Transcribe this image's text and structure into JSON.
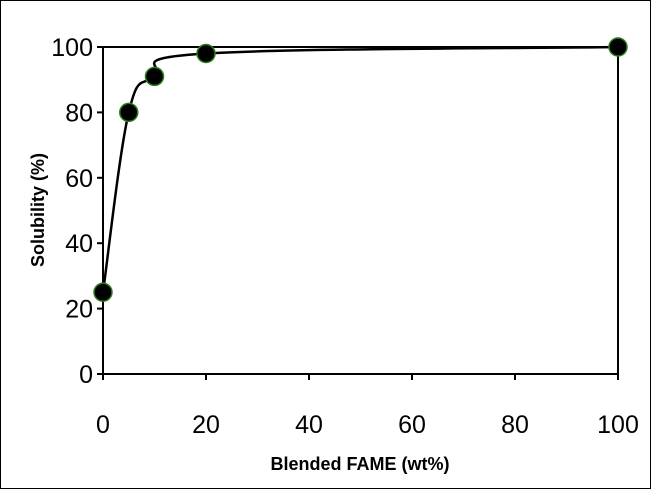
{
  "chart_data": {
    "type": "scatter",
    "title": "",
    "xlabel": "Blended FAME (wt%)",
    "ylabel": "Solubility (%)",
    "xlim": [
      0,
      100
    ],
    "ylim": [
      0,
      100
    ],
    "xticks": [
      "0",
      "20",
      "40",
      "60",
      "80",
      "100"
    ],
    "yticks": [
      "0",
      "20",
      "40",
      "60",
      "80",
      "100"
    ],
    "grid": false,
    "legend": "none",
    "series": [
      {
        "x": [
          0,
          5,
          10,
          20,
          100
        ],
        "y": [
          25,
          80,
          91,
          98,
          100
        ],
        "marker_color": "#000000",
        "marker_edge_color": "#2e7d1e",
        "line_color": "#000000",
        "smooth_line": true
      }
    ]
  }
}
